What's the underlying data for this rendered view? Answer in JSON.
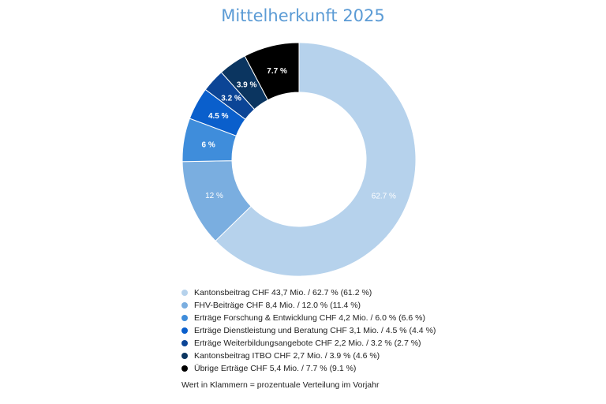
{
  "chart_data": {
    "type": "pie",
    "title": "Mittelherkunft 2025",
    "slices": [
      {
        "value": 62.7,
        "label": "62.7 %",
        "legend": "Kantonsbeitrag CHF 43,7 Mio. / 62.7 % (61.2 %)",
        "color": "#b6d2ec"
      },
      {
        "value": 12.0,
        "label": "12 %",
        "legend": "FHV-Beiträge CHF 8,4 Mio. / 12.0 % (11.4 %)",
        "color": "#7aaee0"
      },
      {
        "value": 6.0,
        "label": "6 %",
        "legend": "Erträge Forschung & Entwicklung CHF 4,2 Mio. / 6.0 % (6.6 %)",
        "color": "#3f8ddb"
      },
      {
        "value": 4.5,
        "label": "4.5 %",
        "legend": "Erträge Dienstleistung und Beratung CHF 3,1 Mio. / 4.5 % (4.4 %)",
        "color": "#0a5fcc"
      },
      {
        "value": 3.2,
        "label": "3.2 %",
        "legend": "Erträge Weiterbildungsangebote CHF 2,2 Mio. / 3.2 % (2.7 %)",
        "color": "#0c4596"
      },
      {
        "value": 3.9,
        "label": "3.9 %",
        "legend": "Kantonsbeitrag ITBO CHF 2,7 Mio. / 3.9 % (4.6 %)",
        "color": "#0b3560"
      },
      {
        "value": 7.7,
        "label": "7.7 %",
        "legend": "Übrige Erträge CHF 5,4 Mio. / 7.7 % (9.1 %)",
        "color": "#000000"
      }
    ],
    "footnote": "Wert in Klammern = prozentuale Verteilung im Vorjahr"
  }
}
